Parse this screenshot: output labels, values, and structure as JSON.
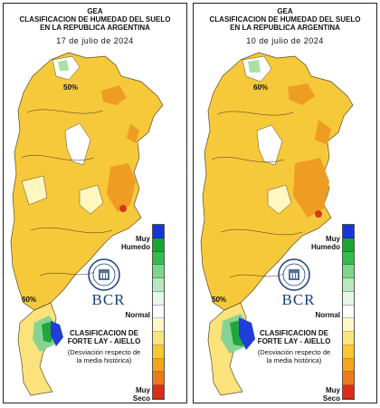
{
  "panels": [
    {
      "org": "GEA",
      "title_line1": "CLASIFICACION DE HUMEDAD DEL SUELO",
      "title_line2": "EN LA REPUBLICA ARGENTINA",
      "date": "17 de julio de 2024",
      "label_top_pct": "50%",
      "label_bottom_pct": "60%"
    },
    {
      "org": "GEA",
      "title_line1": "CLASIFICACION DE HUMEDAD DEL SUELO",
      "title_line2": "EN LA REPUBLICA ARGENTINA",
      "date": "10 de julio de 2024",
      "label_top_pct": "60%",
      "label_bottom_pct": "50%"
    }
  ],
  "legend": {
    "muy_humedo_1": "Muy",
    "muy_humedo_2": "Humedo",
    "normal": "Normal",
    "muy_seco_1": "Muy",
    "muy_seco_2": "Seco",
    "colors": [
      "#1535d6",
      "#19a630",
      "#34bc4e",
      "#7cd68b",
      "#b9e8bf",
      "#e6f6e8",
      "#ffffff",
      "#fff8c6",
      "#fbe47a",
      "#f8c832",
      "#f3a51f",
      "#ec7a1c",
      "#e02a1a"
    ]
  },
  "branding": {
    "bcr": "BCR",
    "classification_line1": "CLASIFICACION DE",
    "classification_line2": "FORTE LAY - AIELLO",
    "deviation_line1": "(Desviación respecto de",
    "deviation_line2": "la media histórica)",
    "logo_text": "BOLSA DE COMERCIO DE ROSARIO"
  }
}
